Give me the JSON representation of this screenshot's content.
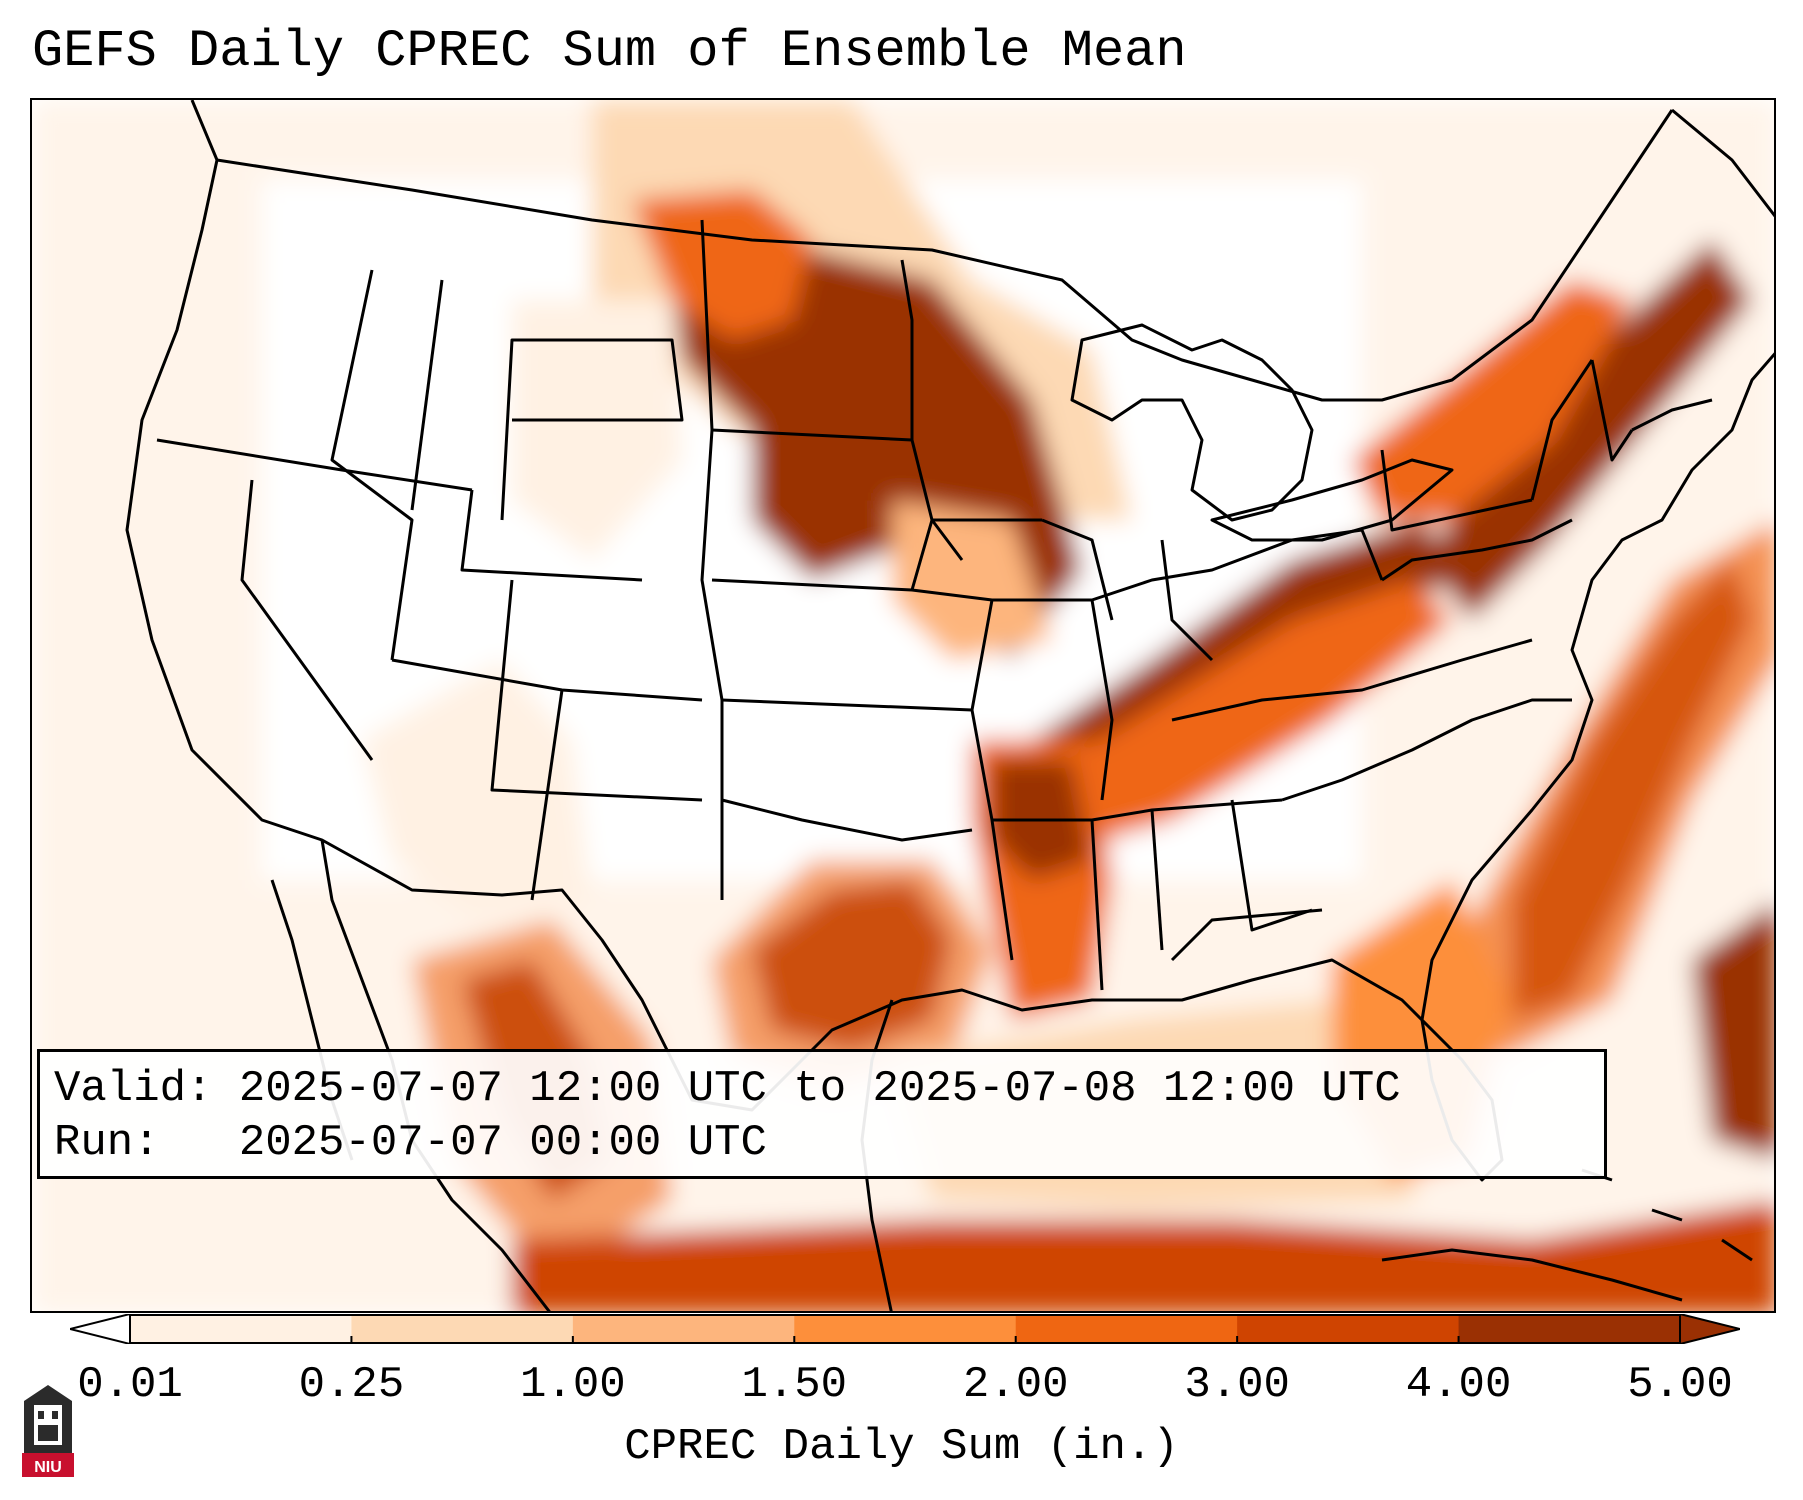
{
  "title": "GEFS Daily CPREC Sum of Ensemble Mean",
  "info": {
    "valid_label": "Valid:",
    "valid_value": "2025-07-07 12:00 UTC to 2025-07-08 12:00 UTC",
    "run_label": "Run:",
    "run_value": "2025-07-07 00:00 UTC"
  },
  "colorbar": {
    "label": "CPREC Daily Sum (in.)",
    "ticks": [
      "0.01",
      "0.25",
      "1.00",
      "1.50",
      "2.00",
      "3.00",
      "4.00",
      "5.00"
    ],
    "colors": [
      "#fff1e3",
      "#fdd9b4",
      "#fdb57d",
      "#fd8f3b",
      "#ef6612",
      "#cf4401",
      "#9a3003"
    ],
    "extend": "both"
  },
  "logo": {
    "text": "NIU",
    "colors": {
      "shield": "#2b2b2b",
      "banner": "#c8102e"
    }
  },
  "map": {
    "region": "Contiguous United States",
    "colors": {
      "lightest": "#fff1e3",
      "light": "#fdd9b4",
      "medium": "#fdb57d",
      "orange": "#fd8f3b",
      "dark_orange": "#ef6612",
      "brown": "#9a3003",
      "borders": "#000000"
    }
  }
}
